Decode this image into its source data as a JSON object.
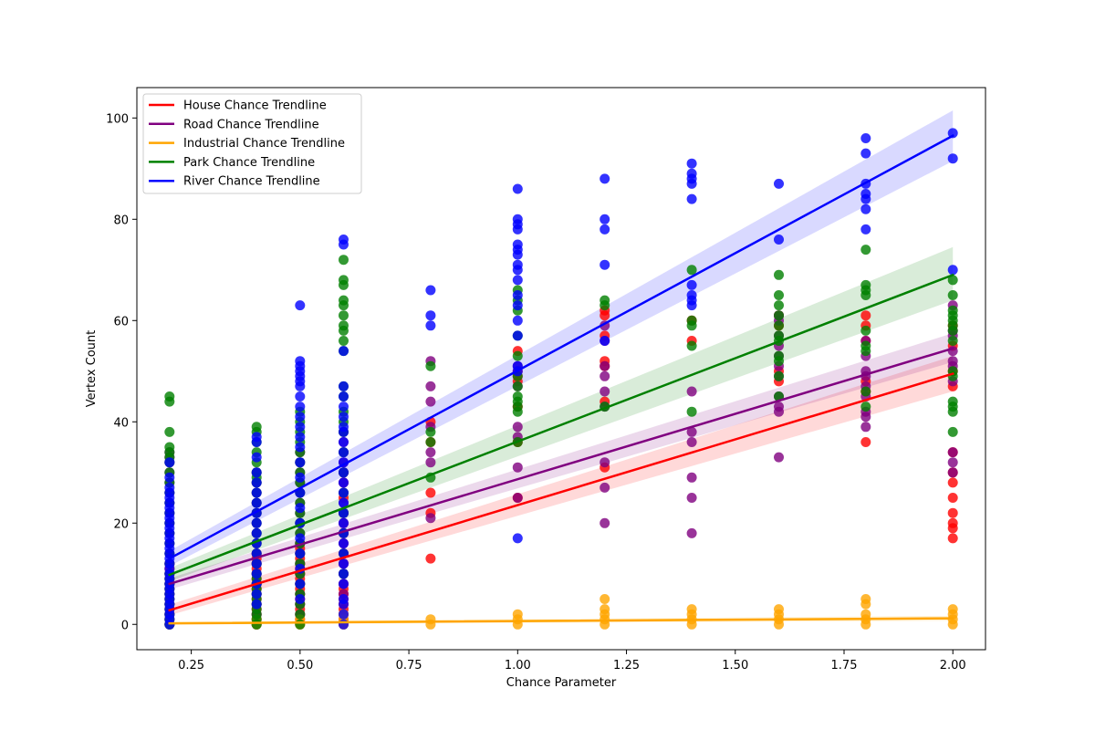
{
  "chart_data": {
    "type": "scatter",
    "title": "",
    "xlabel": "Chance Parameter",
    "ylabel": "Vertex Count",
    "xlim": [
      0.125,
      2.075
    ],
    "ylim": [
      -5,
      106
    ],
    "xticks": [
      0.25,
      0.5,
      0.75,
      1.0,
      1.25,
      1.5,
      1.75,
      2.0
    ],
    "xtick_labels": [
      "0.25",
      "0.50",
      "0.75",
      "1.00",
      "1.25",
      "1.50",
      "1.75",
      "2.00"
    ],
    "yticks": [
      0,
      20,
      40,
      60,
      80,
      100
    ],
    "ytick_labels": [
      "0",
      "20",
      "40",
      "60",
      "80",
      "100"
    ],
    "grid": false,
    "legend_position": "top-left",
    "series": [
      {
        "name": "House Chance Trendline",
        "color": "#ff0000",
        "trend": {
          "x": [
            0.2,
            2.0
          ],
          "y": [
            2.8,
            49.5
          ]
        },
        "ci": {
          "lower": [
            1.8,
            46.0
          ],
          "upper": [
            3.9,
            53.0
          ]
        },
        "points": [
          {
            "x": 0.2,
            "y": [
              0,
              1,
              2,
              3,
              4,
              5,
              6,
              7,
              8,
              9,
              10,
              11,
              12
            ]
          },
          {
            "x": 0.4,
            "y": [
              0,
              1,
              2,
              3,
              4,
              5,
              6,
              7,
              8,
              9,
              10,
              11,
              12,
              13,
              14
            ]
          },
          {
            "x": 0.5,
            "y": [
              0,
              1,
              2,
              3,
              4,
              5,
              6,
              7,
              8,
              9,
              10,
              11,
              12,
              13,
              14,
              15,
              16
            ]
          },
          {
            "x": 0.6,
            "y": [
              0,
              1,
              2,
              3,
              4,
              5,
              6,
              7,
              8,
              10,
              12,
              14,
              16,
              18,
              20,
              22,
              25,
              28,
              30
            ]
          },
          {
            "x": 0.8,
            "y": [
              13,
              22,
              26,
              36,
              40
            ]
          },
          {
            "x": 1.0,
            "y": [
              25,
              36,
              43,
              48,
              49,
              50,
              54
            ]
          },
          {
            "x": 1.2,
            "y": [
              31,
              44,
              51,
              52,
              57,
              61,
              62
            ]
          },
          {
            "x": 1.4,
            "y": [
              56,
              60
            ]
          },
          {
            "x": 1.6,
            "y": [
              48,
              50,
              59,
              61
            ]
          },
          {
            "x": 1.8,
            "y": [
              36,
              46,
              48,
              56,
              59,
              61
            ]
          },
          {
            "x": 2.0,
            "y": [
              17,
              19,
              20,
              22,
              25,
              28,
              30,
              34,
              47,
              50,
              55,
              59
            ]
          }
        ]
      },
      {
        "name": "Road Chance Trendline",
        "color": "#800080",
        "trend": {
          "x": [
            0.2,
            2.0
          ],
          "y": [
            8.0,
            54.5
          ]
        },
        "ci": {
          "lower": [
            6.9,
            51.8
          ],
          "upper": [
            9.1,
            57.5
          ]
        },
        "points": [
          {
            "x": 0.2,
            "y": [
              0,
              2,
              4,
              6,
              8,
              10,
              12,
              14,
              16,
              18,
              20,
              22,
              24,
              26,
              28,
              30,
              32,
              33,
              34
            ]
          },
          {
            "x": 0.4,
            "y": [
              0,
              2,
              4,
              6,
              8,
              10,
              12,
              14,
              16,
              18,
              20,
              22,
              24,
              26,
              28,
              30
            ]
          },
          {
            "x": 0.5,
            "y": [
              2,
              4,
              6,
              8,
              10,
              12,
              14,
              16,
              18,
              20,
              22,
              24,
              26,
              28,
              30,
              32,
              34
            ]
          },
          {
            "x": 0.6,
            "y": [
              6,
              8,
              10,
              12,
              14,
              16,
              18,
              20,
              22,
              24,
              26,
              28,
              30,
              32,
              34,
              36,
              38
            ]
          },
          {
            "x": 0.8,
            "y": [
              21,
              32,
              34,
              39,
              44,
              47,
              52
            ]
          },
          {
            "x": 1.0,
            "y": [
              25,
              31,
              37,
              39,
              47,
              51
            ]
          },
          {
            "x": 1.2,
            "y": [
              20,
              27,
              32,
              43,
              46,
              49,
              51,
              56,
              59
            ]
          },
          {
            "x": 1.4,
            "y": [
              18,
              25,
              29,
              36,
              38,
              46
            ]
          },
          {
            "x": 1.6,
            "y": [
              33,
              42,
              43,
              45,
              49,
              51,
              53,
              55,
              57,
              60,
              61
            ]
          },
          {
            "x": 1.8,
            "y": [
              39,
              41,
              42,
              45,
              47,
              49,
              50,
              53,
              56
            ]
          },
          {
            "x": 2.0,
            "y": [
              30,
              32,
              34,
              48,
              51,
              52,
              54,
              57,
              58,
              63
            ]
          }
        ]
      },
      {
        "name": "Industrial Chance Trendline",
        "color": "#ffa500",
        "trend": {
          "x": [
            0.2,
            2.0
          ],
          "y": [
            0.2,
            1.2
          ]
        },
        "ci": {
          "lower": [
            0.0,
            0.7
          ],
          "upper": [
            0.5,
            1.7
          ]
        },
        "points": [
          {
            "x": 0.2,
            "y": [
              0,
              1
            ]
          },
          {
            "x": 0.4,
            "y": [
              0,
              1
            ]
          },
          {
            "x": 0.5,
            "y": [
              0,
              1
            ]
          },
          {
            "x": 0.6,
            "y": [
              0,
              1,
              2
            ]
          },
          {
            "x": 0.8,
            "y": [
              0,
              1
            ]
          },
          {
            "x": 1.0,
            "y": [
              0,
              1,
              2
            ]
          },
          {
            "x": 1.2,
            "y": [
              0,
              1,
              2,
              3,
              5
            ]
          },
          {
            "x": 1.4,
            "y": [
              0,
              1,
              2,
              3
            ]
          },
          {
            "x": 1.6,
            "y": [
              0,
              1,
              2,
              3
            ]
          },
          {
            "x": 1.8,
            "y": [
              0,
              1,
              2,
              4,
              5
            ]
          },
          {
            "x": 2.0,
            "y": [
              0,
              1,
              2,
              3
            ]
          }
        ]
      },
      {
        "name": "Park Chance Trendline",
        "color": "#008000",
        "trend": {
          "x": [
            0.2,
            2.0
          ],
          "y": [
            9.8,
            69.0
          ]
        },
        "ci": {
          "lower": [
            8.5,
            64.0
          ],
          "upper": [
            11.1,
            74.5
          ]
        },
        "points": [
          {
            "x": 0.2,
            "y": [
              0,
              1,
              2,
              3,
              4,
              5,
              6,
              7,
              8,
              9,
              10,
              12,
              14,
              16,
              18,
              20,
              22,
              24,
              26,
              28,
              30,
              32,
              33,
              34,
              35,
              38,
              44,
              45
            ]
          },
          {
            "x": 0.4,
            "y": [
              0,
              1,
              2,
              3,
              4,
              5,
              6,
              7,
              8,
              9,
              10,
              12,
              14,
              16,
              18,
              20,
              22,
              24,
              26,
              28,
              29,
              30,
              32,
              34,
              36,
              38,
              39
            ]
          },
          {
            "x": 0.5,
            "y": [
              0,
              2,
              4,
              6,
              8,
              10,
              12,
              14,
              16,
              18,
              20,
              22,
              24,
              26,
              28,
              30,
              32,
              34,
              36,
              38,
              40,
              42
            ]
          },
          {
            "x": 0.6,
            "y": [
              10,
              14,
              18,
              22,
              26,
              30,
              34,
              38,
              40,
              42,
              45,
              47,
              54,
              56,
              58,
              59,
              61,
              63,
              64,
              67,
              68,
              72
            ]
          },
          {
            "x": 0.8,
            "y": [
              29,
              36,
              38,
              51
            ]
          },
          {
            "x": 1.0,
            "y": [
              36,
              42,
              43,
              44,
              45,
              47,
              49,
              53,
              57,
              62,
              64,
              66
            ]
          },
          {
            "x": 1.2,
            "y": [
              43,
              63,
              64
            ]
          },
          {
            "x": 1.4,
            "y": [
              42,
              55,
              59,
              60,
              70
            ]
          },
          {
            "x": 1.6,
            "y": [
              45,
              49,
              52,
              53,
              56,
              57,
              59,
              61,
              63,
              65,
              69
            ]
          },
          {
            "x": 1.8,
            "y": [
              43,
              46,
              54,
              55,
              58,
              65,
              66,
              67,
              74
            ]
          },
          {
            "x": 2.0,
            "y": [
              38,
              42,
              43,
              44,
              49,
              50,
              56,
              58,
              59,
              60,
              61,
              62,
              65,
              68
            ]
          }
        ]
      },
      {
        "name": "River Chance Trendline",
        "color": "#0000ff",
        "trend": {
          "x": [
            0.2,
            2.0
          ],
          "y": [
            13.0,
            96.5
          ]
        },
        "ci": {
          "lower": [
            11.5,
            91.5
          ],
          "upper": [
            14.5,
            101.5
          ]
        },
        "points": [
          {
            "x": 0.2,
            "y": [
              0,
              1,
              2,
              3,
              4,
              5,
              6,
              7,
              8,
              9,
              10,
              11,
              12,
              13,
              14,
              15,
              16,
              17,
              18,
              19,
              20,
              21,
              22,
              23,
              24,
              25,
              26,
              27,
              29,
              32
            ]
          },
          {
            "x": 0.4,
            "y": [
              4,
              6,
              8,
              10,
              12,
              14,
              16,
              18,
              20,
              22,
              24,
              26,
              28,
              30,
              33,
              36,
              37
            ]
          },
          {
            "x": 0.5,
            "y": [
              5,
              8,
              11,
              14,
              17,
              20,
              23,
              26,
              29,
              32,
              35,
              37,
              39,
              41,
              43,
              45,
              47,
              48,
              49,
              50,
              51,
              52,
              63
            ]
          },
          {
            "x": 0.6,
            "y": [
              0,
              2,
              4,
              5,
              8,
              10,
              12,
              14,
              16,
              18,
              20,
              22,
              24,
              26,
              28,
              30,
              32,
              34,
              36,
              38,
              39,
              41,
              43,
              45,
              47,
              54,
              75,
              76
            ]
          },
          {
            "x": 0.8,
            "y": [
              59,
              61,
              66
            ]
          },
          {
            "x": 1.0,
            "y": [
              17,
              50,
              51,
              57,
              60,
              63,
              65,
              68,
              70,
              71,
              73,
              74,
              75,
              78,
              79,
              80,
              86
            ]
          },
          {
            "x": 1.2,
            "y": [
              56,
              71,
              78,
              80,
              88
            ]
          },
          {
            "x": 1.4,
            "y": [
              63,
              64,
              65,
              67,
              84,
              87,
              88,
              89,
              91
            ]
          },
          {
            "x": 1.6,
            "y": [
              76,
              87
            ]
          },
          {
            "x": 1.8,
            "y": [
              78,
              82,
              84,
              85,
              87,
              93,
              96
            ]
          },
          {
            "x": 2.0,
            "y": [
              70,
              92,
              97
            ]
          }
        ]
      }
    ]
  }
}
